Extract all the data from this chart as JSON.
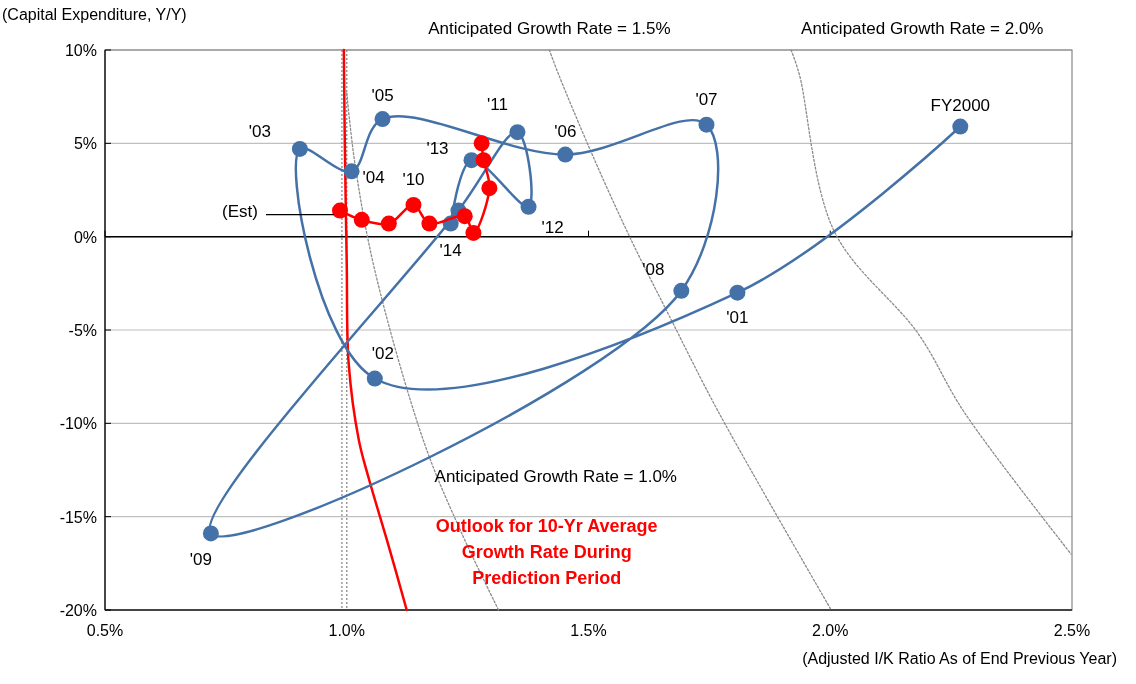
{
  "chart_data": {
    "type": "line",
    "xlabel": "(Adjusted I/K Ratio As of End Previous Year)",
    "ylabel": "(Capital Expenditure, Y/Y)",
    "xlim": [
      0.5,
      2.5
    ],
    "ylim": [
      -20,
      10
    ],
    "xticks": [
      {
        "value": 0.5,
        "label": "0.5%"
      },
      {
        "value": 1.0,
        "label": "1.0%"
      },
      {
        "value": 1.5,
        "label": "1.5%"
      },
      {
        "value": 2.0,
        "label": "2.0%"
      },
      {
        "value": 2.5,
        "label": "2.5%"
      }
    ],
    "yticks": [
      {
        "value": -20,
        "label": "-20%"
      },
      {
        "value": -15,
        "label": "-15%"
      },
      {
        "value": -10,
        "label": "-10%"
      },
      {
        "value": -5,
        "label": "-5%"
      },
      {
        "value": 0,
        "label": "0%"
      },
      {
        "value": 5,
        "label": "5%"
      },
      {
        "value": 10,
        "label": "10%"
      }
    ],
    "grid": "y",
    "series": [
      {
        "color": "#8c8c8c",
        "line_style": "dotted",
        "marker": "none",
        "x": [
          1.0,
          1.017,
          1.058,
          1.161,
          1.238,
          1.314
        ],
        "values": [
          7.7,
          3.9,
          -1.8,
          -11.1,
          -15.9,
          -20
        ]
      },
      {
        "color": "#8c8c8c",
        "line_style": "dotted",
        "marker": "none",
        "x": [
          1.419,
          1.438,
          1.506,
          1.585,
          1.672,
          1.769,
          2.002
        ],
        "values": [
          10,
          8.7,
          4.5,
          0,
          -4.5,
          -9.4,
          -20
        ]
      },
      {
        "color": "#8c8c8c",
        "line_style": "dotted",
        "marker": "none",
        "x": [
          1.919,
          1.936,
          2.008,
          2.182,
          2.277,
          2.498
        ],
        "values": [
          10,
          8.7,
          0.3,
          -5.2,
          -9.4,
          -17
        ]
      },
      {
        "name": "Outlook for 10-Yr Average Growth Rate During Prediction Period",
        "color": "#ff0000",
        "line_style": "solid",
        "marker": "none",
        "x": [
          0.994,
          0.996,
          1.0,
          1.004,
          1.025,
          1.045,
          1.087,
          1.124
        ],
        "values": [
          10,
          5,
          -1.5,
          -6.8,
          -10.9,
          -12.9,
          -16.6,
          -20
        ]
      },
      {
        "color": "#4472a8",
        "line_style": "solid",
        "marker": "circle",
        "x": [
          2.269,
          1.808,
          1.058,
          0.903,
          1.01,
          1.074,
          1.452,
          1.744,
          1.692,
          0.719,
          1.231,
          1.353,
          1.376,
          1.258,
          1.215
        ],
        "values": [
          5.9,
          -3.0,
          -7.6,
          4.7,
          3.5,
          6.3,
          4.4,
          6.0,
          -2.9,
          -15.9,
          1.4,
          5.6,
          1.6,
          4.1,
          0.7
        ]
      },
      {
        "color": "#ff0000",
        "line_style": "solid",
        "marker": "circle",
        "x": [
          1.279,
          1.283,
          1.295,
          1.262,
          1.244,
          1.171,
          1.138,
          1.087,
          1.031,
          0.986
        ],
        "values": [
          5.0,
          4.1,
          2.6,
          0.2,
          1.1,
          0.7,
          1.7,
          0.7,
          0.9,
          1.4
        ]
      }
    ],
    "ref_lines": [
      {
        "axis": "x",
        "value": 0.99,
        "line_style": "dotted",
        "color": "#8c8c8c"
      },
      {
        "axis": "x",
        "value": 1.0,
        "line_style": "dotted",
        "color": "#8c8c8c"
      }
    ],
    "annotations": [
      {
        "text": "FY2000",
        "x": 2.269,
        "y": 5.9
      },
      {
        "text": "'01",
        "x": 1.808,
        "y": -3.0
      },
      {
        "text": "'02",
        "x": 1.058,
        "y": -7.6
      },
      {
        "text": "'03",
        "x": 0.903,
        "y": 4.7
      },
      {
        "text": "'04",
        "x": 1.01,
        "y": 3.5
      },
      {
        "text": "'05",
        "x": 1.074,
        "y": 6.3
      },
      {
        "text": "'06",
        "x": 1.452,
        "y": 4.4
      },
      {
        "text": "'07",
        "x": 1.744,
        "y": 6.0
      },
      {
        "text": "'08",
        "x": 1.692,
        "y": -2.9
      },
      {
        "text": "'09",
        "x": 0.719,
        "y": -15.9
      },
      {
        "text": "'10",
        "x": 1.138,
        "y": 1.7
      },
      {
        "text": "'11",
        "x": 1.353,
        "y": 5.6
      },
      {
        "text": "'12",
        "x": 1.376,
        "y": 1.6
      },
      {
        "text": "'13",
        "x": 1.258,
        "y": 4.1
      },
      {
        "text": "'14",
        "x": 1.215,
        "y": 0.7
      },
      {
        "text": "(Est)",
        "x": 0.986,
        "y": 1.4
      },
      {
        "text": "Anticipated Growth Rate = 1.0%",
        "x": 1.161,
        "y": -11.1
      },
      {
        "text": "Anticipated Growth Rate = 1.5%",
        "x": 1.419,
        "y": 10
      },
      {
        "text": "Anticipated Growth Rate = 2.0%",
        "x": 1.919,
        "y": 10
      }
    ]
  }
}
